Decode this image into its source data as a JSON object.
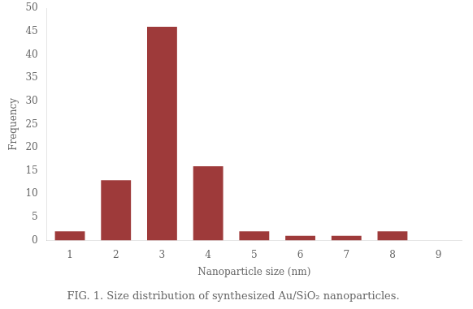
{
  "chart_data": {
    "type": "bar",
    "title": "FIG. 1. Size distribution of synthesized Au/SiO₂ nanoparticles.",
    "xlabel": "Nanoparticle size (nm)",
    "ylabel": "Frequency",
    "x": [
      1,
      2,
      3,
      4,
      5,
      6,
      7,
      8,
      9
    ],
    "values": [
      2,
      13,
      46,
      16,
      2,
      1,
      1,
      2,
      0
    ],
    "color": "#9e3a3a",
    "xlim": [
      0.5,
      9.5
    ],
    "xticks": [
      1,
      2,
      3,
      4,
      5,
      6,
      7,
      8,
      9
    ],
    "ylim": [
      0,
      50
    ],
    "yticks": [
      0,
      5,
      10,
      15,
      20,
      25,
      30,
      35,
      40,
      45,
      50
    ],
    "grid": false
  }
}
